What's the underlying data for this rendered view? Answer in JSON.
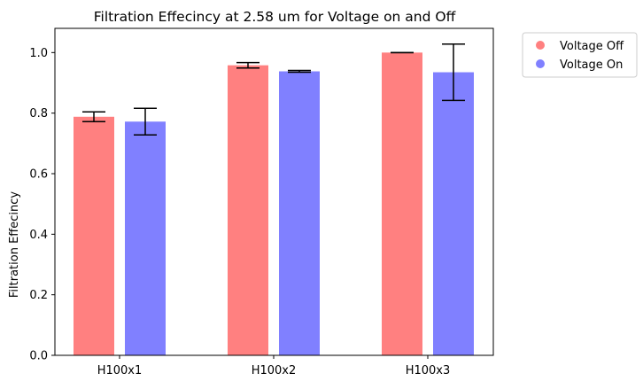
{
  "chart_data": {
    "type": "bar",
    "title": "Filtration Effecincy at 2.58 um for Voltage on and Off",
    "xlabel": "",
    "ylabel": "Filtration Effecincy",
    "categories": [
      "H100x1",
      "H100x2",
      "H100x3"
    ],
    "ylim": [
      0,
      1.08
    ],
    "yticks": [
      0.0,
      0.2,
      0.4,
      0.6,
      0.8,
      1.0
    ],
    "ytick_labels": [
      "0.0",
      "0.2",
      "0.4",
      "0.6",
      "0.8",
      "1.0"
    ],
    "grid": false,
    "legend_position": "outside-top-right",
    "series": [
      {
        "name": "Voltage Off",
        "color": "#ff8080",
        "values": [
          0.788,
          0.958,
          1.0
        ],
        "errors": [
          0.016,
          0.009,
          0.0
        ]
      },
      {
        "name": "Voltage On",
        "color": "#8080ff",
        "values": [
          0.772,
          0.938,
          0.935
        ],
        "errors": [
          0.044,
          0.003,
          0.093
        ]
      }
    ]
  }
}
